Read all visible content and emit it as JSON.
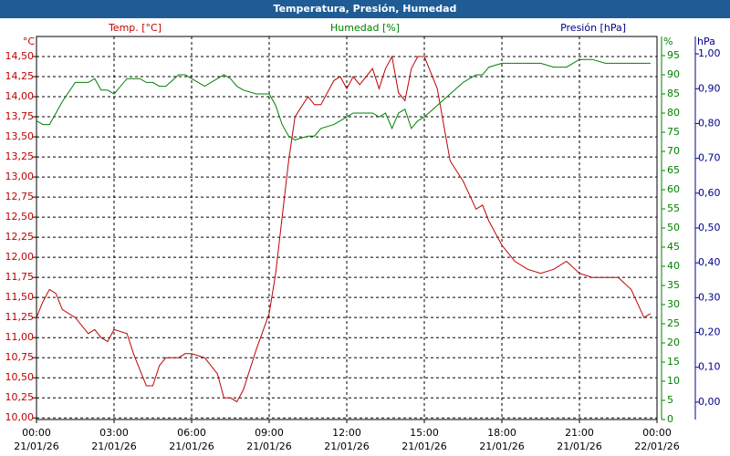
{
  "chart_data": {
    "type": "line",
    "title": "Temperatura, Presión, Humedad",
    "x": [
      0,
      0.25,
      0.5,
      0.75,
      1,
      1.5,
      2,
      2.25,
      2.5,
      2.75,
      3,
      3.5,
      3.75,
      4,
      4.25,
      4.5,
      4.75,
      5,
      5.5,
      5.75,
      6,
      6.5,
      7,
      7.25,
      7.5,
      7.75,
      8,
      8.5,
      9,
      9.25,
      9.5,
      9.75,
      10,
      10.5,
      10.75,
      11,
      11.5,
      11.75,
      12,
      12.25,
      12.5,
      13,
      13.25,
      13.5,
      13.75,
      14,
      14.25,
      14.5,
      14.75,
      15,
      15.5,
      16,
      16.5,
      17,
      17.25,
      17.5,
      18,
      18.5,
      19,
      19.5,
      20,
      20.5,
      21,
      21.5,
      22,
      22.5,
      23,
      23.5,
      23.75
    ],
    "series": [
      {
        "name": "Temp. [°C]",
        "color": "#c00000",
        "axis": "y",
        "values": [
          11.25,
          11.45,
          11.6,
          11.55,
          11.35,
          11.25,
          11.05,
          11.1,
          11.0,
          10.95,
          11.1,
          11.05,
          10.8,
          10.6,
          10.4,
          10.4,
          10.65,
          10.75,
          10.75,
          10.8,
          10.8,
          10.75,
          10.55,
          10.25,
          10.25,
          10.2,
          10.35,
          10.85,
          11.3,
          11.8,
          12.5,
          13.2,
          13.75,
          14.0,
          13.9,
          13.9,
          14.2,
          14.25,
          14.1,
          14.25,
          14.15,
          14.35,
          14.1,
          14.35,
          14.5,
          14.05,
          13.95,
          14.35,
          14.5,
          14.5,
          14.1,
          13.2,
          12.95,
          12.6,
          12.65,
          12.45,
          12.15,
          11.95,
          11.85,
          11.8,
          11.85,
          11.95,
          11.8,
          11.75,
          11.75,
          11.75,
          11.6,
          11.25,
          11.3
        ]
      },
      {
        "name": "Humedad [%]",
        "color": "#008000",
        "axis": "y2",
        "values": [
          78,
          77,
          77,
          80,
          83,
          88,
          88,
          89,
          86,
          86,
          85,
          89,
          89,
          89,
          88,
          88,
          87,
          87,
          90,
          90,
          89,
          87,
          89,
          90,
          89,
          87,
          86,
          85,
          85,
          82,
          77,
          74,
          73,
          74,
          74,
          76,
          77,
          78,
          79,
          80,
          80,
          80,
          79,
          80,
          76,
          80,
          81,
          76,
          78,
          79,
          82,
          85,
          88,
          90,
          90,
          92,
          93,
          93,
          93,
          93,
          92,
          92,
          94,
          94,
          93,
          93,
          93,
          93,
          93
        ]
      }
    ],
    "y3title": "Presión [hPa]",
    "y3color": "#00008b",
    "ylabel": "°C",
    "y2label": "%",
    "y3label": "hPa",
    "xlim": [
      0,
      24
    ],
    "xticks": [
      {
        "value": 0,
        "label": "00:00"
      },
      {
        "value": 3,
        "label": "03:00"
      },
      {
        "value": 6,
        "label": "06:00"
      },
      {
        "value": 9,
        "label": "09:00"
      },
      {
        "value": 12,
        "label": "12:00"
      },
      {
        "value": 15,
        "label": "15:00"
      },
      {
        "value": 18,
        "label": "18:00"
      },
      {
        "value": 21,
        "label": "21:00"
      },
      {
        "value": 24,
        "label": "00:00"
      }
    ],
    "xtick_dates": [
      "21/01/26",
      "21/01/26",
      "21/01/26",
      "21/01/26",
      "21/01/26",
      "21/01/26",
      "21/01/26",
      "21/01/26",
      "22/01/26"
    ],
    "ylim": [
      9.98,
      14.75
    ],
    "yticks": [
      {
        "value": 10,
        "label": "10,00"
      },
      {
        "value": 10.25,
        "label": "10,25"
      },
      {
        "value": 10.5,
        "label": "10,50"
      },
      {
        "value": 10.75,
        "label": "10,75"
      },
      {
        "value": 11,
        "label": "11,00"
      },
      {
        "value": 11.25,
        "label": "11,25"
      },
      {
        "value": 11.5,
        "label": "11,50"
      },
      {
        "value": 11.75,
        "label": "11,75"
      },
      {
        "value": 12,
        "label": "12,00"
      },
      {
        "value": 12.25,
        "label": "12,25"
      },
      {
        "value": 12.5,
        "label": "12,50"
      },
      {
        "value": 12.75,
        "label": "12,75"
      },
      {
        "value": 13,
        "label": "13,00"
      },
      {
        "value": 13.25,
        "label": "13,25"
      },
      {
        "value": 13.5,
        "label": "13,50"
      },
      {
        "value": 13.75,
        "label": "13,75"
      },
      {
        "value": 14,
        "label": "14,00"
      },
      {
        "value": 14.25,
        "label": "14,25"
      },
      {
        "value": 14.5,
        "label": "14,50"
      }
    ],
    "y2lim": [
      0,
      100
    ],
    "y2ticks": [
      0,
      5,
      10,
      15,
      20,
      25,
      30,
      35,
      40,
      45,
      50,
      55,
      60,
      65,
      70,
      75,
      80,
      85,
      90,
      95
    ],
    "y3lim": [
      -0.05,
      1.05
    ],
    "y3ticks": [
      {
        "value": 0,
        "label": "0,00"
      },
      {
        "value": 0.1,
        "label": "0,10"
      },
      {
        "value": 0.2,
        "label": "0,20"
      },
      {
        "value": 0.3,
        "label": "0,30"
      },
      {
        "value": 0.4,
        "label": "0,40"
      },
      {
        "value": 0.5,
        "label": "0,50"
      },
      {
        "value": 0.6,
        "label": "0,60"
      },
      {
        "value": 0.7,
        "label": "0,70"
      },
      {
        "value": 0.8,
        "label": "0,80"
      },
      {
        "value": 0.9,
        "label": "0,90"
      },
      {
        "value": 1,
        "label": "1,00"
      }
    ],
    "grid": true
  }
}
